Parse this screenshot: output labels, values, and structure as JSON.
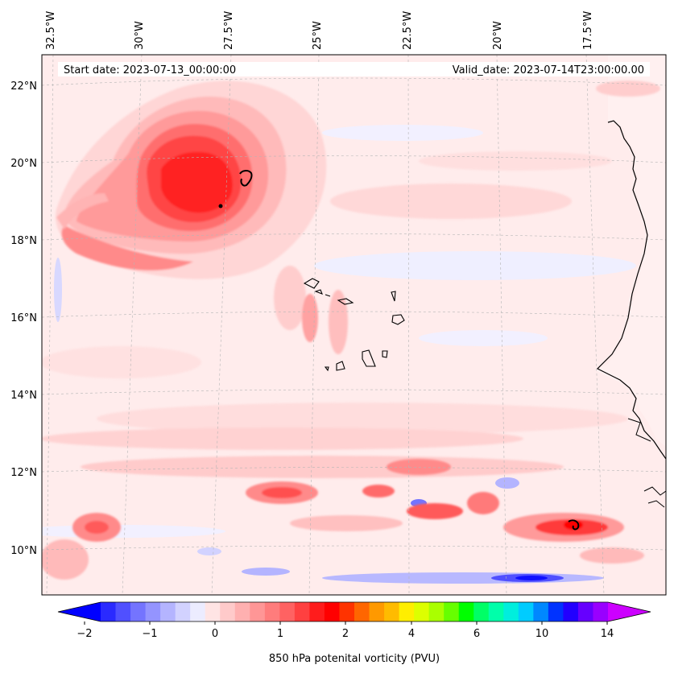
{
  "header": {
    "start_date": "Start date: 2023-07-13_00:00:00",
    "valid_date": "Valid_date: 2023-07-14T23:00:00.00"
  },
  "longitude_labels": [
    "32.5°W",
    "30°W",
    "27.5°W",
    "25°W",
    "22.5°W",
    "20°W",
    "17.5°W"
  ],
  "latitude_labels": [
    "22°N",
    "20°N",
    "18°N",
    "16°N",
    "14°N",
    "12°N",
    "10°N"
  ],
  "colorbar": {
    "label": "850 hPa potenital vorticity (PVU)",
    "ticks": [
      "−2",
      "−1",
      "0",
      "1",
      "2",
      "4",
      "6",
      "10",
      "14"
    ],
    "colors": [
      "#0000ff",
      "#2a2aff",
      "#5050ff",
      "#7474ff",
      "#9494ff",
      "#b4b4ff",
      "#d2d2ff",
      "#ececff",
      "#ffe4e4",
      "#ffcaca",
      "#ffb0b0",
      "#ff9696",
      "#ff7c7c",
      "#ff6262",
      "#ff4040",
      "#ff1c1c",
      "#ff0000",
      "#ff3300",
      "#ff6600",
      "#ff9900",
      "#ffbb00",
      "#ffee00",
      "#ddff00",
      "#aaff00",
      "#66ff00",
      "#00ff00",
      "#00ff66",
      "#00ffaa",
      "#00eedd",
      "#00ccff",
      "#0088ff",
      "#0033ff",
      "#2200ff",
      "#6600ff",
      "#9900ff",
      "#cc00ff"
    ]
  },
  "colors": {
    "background_field": "#ffe8e8",
    "coastline": "#000000",
    "gridline": "#b0b0b0"
  }
}
